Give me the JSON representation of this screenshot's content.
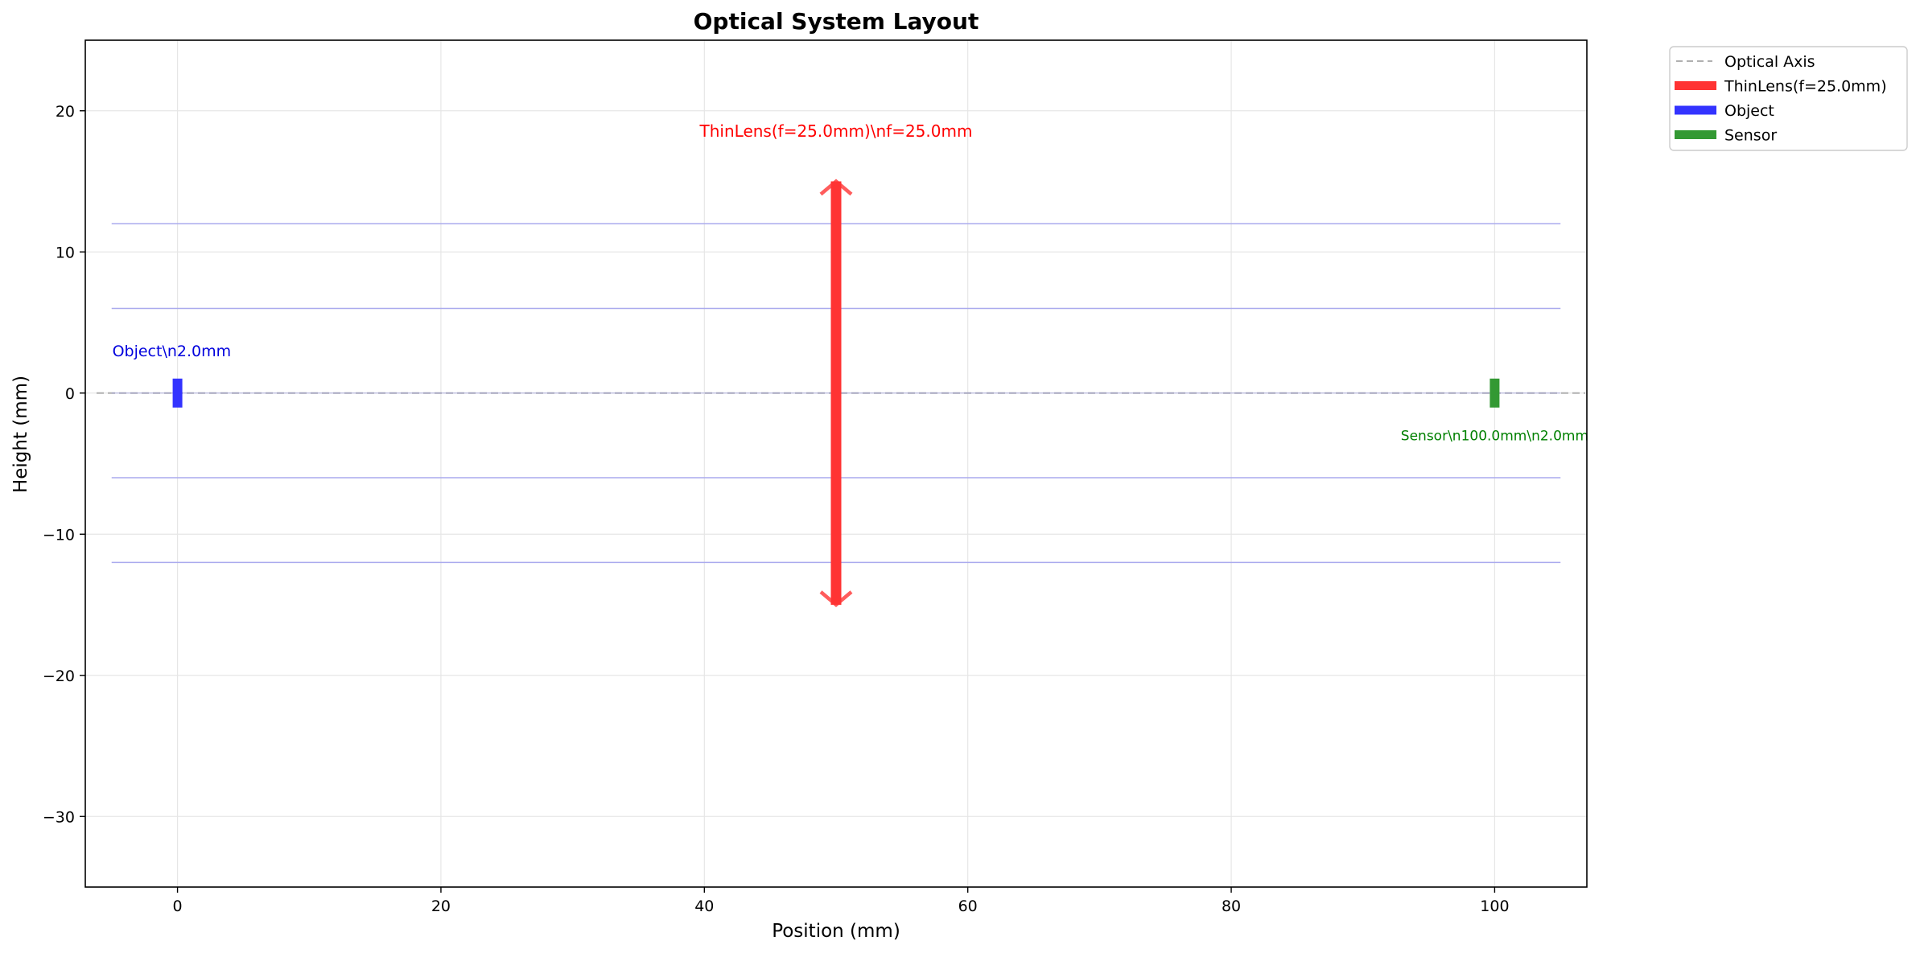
{
  "chart_data": {
    "type": "line",
    "title": "Optical System Layout",
    "xlabel": "Position (mm)",
    "ylabel": "Height (mm)",
    "xlim": [
      -7,
      107
    ],
    "ylim": [
      -35,
      25
    ],
    "xticks": [
      0,
      20,
      40,
      60,
      80,
      100
    ],
    "yticks": [
      20,
      10,
      0,
      -10,
      -20,
      -30
    ],
    "xtick_labels": [
      "0",
      "20",
      "40",
      "60",
      "80",
      "100"
    ],
    "ytick_labels": [
      "20",
      "10",
      "0",
      "−10",
      "−20",
      "−30"
    ],
    "grid": true,
    "legend_position": "outside-top-right",
    "optical_axis": {
      "name": "Optical Axis",
      "y": 0,
      "x": [
        -7,
        107
      ],
      "color": "#b0b0b0",
      "style": "dashed"
    },
    "rays": [
      {
        "y": 12,
        "x": [
          -5,
          105
        ]
      },
      {
        "y": 6,
        "x": [
          -5,
          105
        ]
      },
      {
        "y": -6,
        "x": [
          -5,
          105
        ]
      },
      {
        "y": -12,
        "x": [
          -5,
          105
        ]
      }
    ],
    "ray_color": "#aaaaee",
    "components": [
      {
        "name": "ThinLens(f=25.0mm)",
        "kind": "lens",
        "x": 50,
        "y_range": [
          -15,
          15
        ],
        "color": "#ff3333",
        "annotation": "ThinLens(f=25.0mm)\\nf=25.0mm",
        "annotation_y": 18.5,
        "annotation_color": "#ff0000"
      },
      {
        "name": "Object",
        "kind": "object",
        "x": 0,
        "y_range": [
          -0.8,
          0.8
        ],
        "color": "#3333ff",
        "annotation": "Object\\n2.0mm",
        "annotation_y": 3,
        "annotation_color": "#0000dd"
      },
      {
        "name": "Sensor",
        "kind": "sensor",
        "x": 100,
        "y_range": [
          -0.8,
          0.8
        ],
        "color": "#339933",
        "annotation": "Sensor\\n100.0mm\\n2.0mm",
        "annotation_y": -3,
        "annotation_color": "#008000"
      }
    ],
    "legend": [
      {
        "label": "Optical Axis",
        "color": "#b0b0b0",
        "style": "dashed"
      },
      {
        "label": "ThinLens(f=25.0mm)",
        "color": "#ff3333",
        "style": "thick"
      },
      {
        "label": "Object",
        "color": "#3333ff",
        "style": "thick"
      },
      {
        "label": "Sensor",
        "color": "#339933",
        "style": "thick"
      }
    ]
  }
}
